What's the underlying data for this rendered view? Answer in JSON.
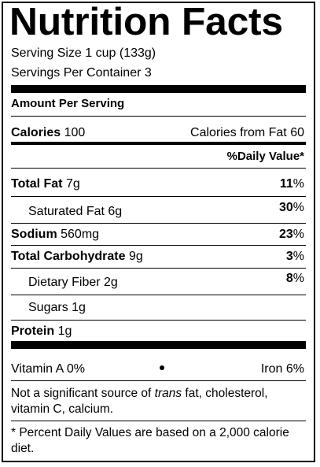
{
  "title": "Nutrition Facts",
  "serving_size_label": "Serving Size",
  "serving_size_value": "1 cup (133g)",
  "servings_label": "Servings Per Container",
  "servings_value": "3",
  "amount_per_serving": "Amount Per Serving",
  "calories": {
    "label": "Calories",
    "value": "100",
    "from_fat_label": "Calories from Fat",
    "from_fat_value": "60"
  },
  "daily_value_header": "%Daily Value*",
  "rows": {
    "total_fat": {
      "name": "Total Fat",
      "amount": "7g",
      "dv": "11",
      "sym": "%"
    },
    "saturated_fat": {
      "name": "Saturated Fat",
      "amount": "6g",
      "dv": "30",
      "sym": "%"
    },
    "sodium": {
      "name": "Sodium",
      "amount": "560mg",
      "dv": "23",
      "sym": "%"
    },
    "total_carbohydrate": {
      "name": "Total Carbohydrate",
      "amount": "9g",
      "dv": "3",
      "sym": "%"
    },
    "dietary_fiber": {
      "name": "Dietary Fiber",
      "amount": "2g",
      "dv": "8",
      "sym": "%"
    },
    "sugars": {
      "name": "Sugars",
      "amount": "1g"
    },
    "protein": {
      "name": "Protein",
      "amount": "1g"
    }
  },
  "vitamins": {
    "vitamin_a": "Vitamin A 0%",
    "iron": "Iron 6%"
  },
  "footnote_1": {
    "pre": "Not a significant source of ",
    "italic": "trans",
    "post": " fat, cholesterol, vitamin C, calcium."
  },
  "footnote_2": "* Percent Daily Values are based on a 2,000 calorie diet."
}
